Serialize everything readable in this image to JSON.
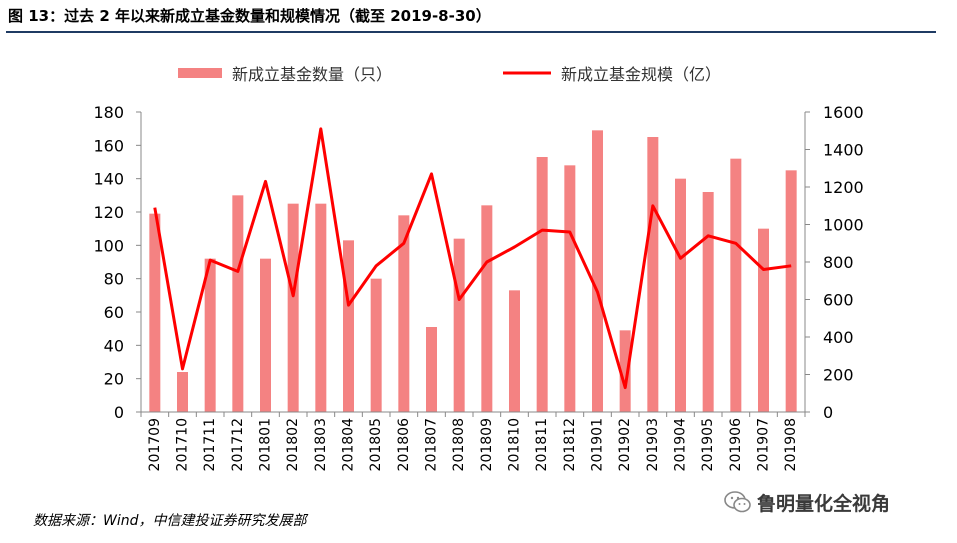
{
  "header": {
    "title": "图 13：过去 2 年以来新成立基金数量和规模情况（截至 2019-8-30）"
  },
  "chart_data": {
    "type": "bar",
    "categories": [
      "201709",
      "201710",
      "201711",
      "201712",
      "201801",
      "201802",
      "201803",
      "201804",
      "201805",
      "201806",
      "201807",
      "201808",
      "201809",
      "201810",
      "201811",
      "201812",
      "201901",
      "201902",
      "201903",
      "201904",
      "201905",
      "201906",
      "201907",
      "201908"
    ],
    "series": [
      {
        "name": "新成立基金数量（只）",
        "type": "bar",
        "axis": "left",
        "color": "#f48282",
        "values": [
          119,
          24,
          92,
          130,
          92,
          125,
          125,
          103,
          80,
          118,
          51,
          104,
          124,
          73,
          153,
          148,
          169,
          49,
          165,
          140,
          132,
          152,
          110,
          145
        ]
      },
      {
        "name": "新成立基金规模（亿）",
        "type": "line",
        "axis": "right",
        "color": "#ff0000",
        "values": [
          1090,
          230,
          810,
          750,
          1230,
          620,
          1510,
          570,
          780,
          900,
          1270,
          600,
          800,
          880,
          970,
          960,
          640,
          130,
          1100,
          820,
          940,
          900,
          760,
          780
        ]
      }
    ],
    "y_left": {
      "min": 0,
      "max": 180,
      "step": 20,
      "ticks": [
        "0",
        "20",
        "40",
        "60",
        "80",
        "100",
        "120",
        "140",
        "160",
        "180"
      ]
    },
    "y_right": {
      "min": 0,
      "max": 1600,
      "step": 200,
      "ticks": [
        "0",
        "200",
        "400",
        "600",
        "800",
        "1000",
        "1200",
        "1400",
        "1600"
      ]
    },
    "legend_position": "top",
    "grid": false
  },
  "footer": {
    "source": "数据来源：Wind，中信建投证券研究发展部",
    "watermark": "鲁明量化全视角",
    "watermark_icon": "wechat-icon"
  }
}
